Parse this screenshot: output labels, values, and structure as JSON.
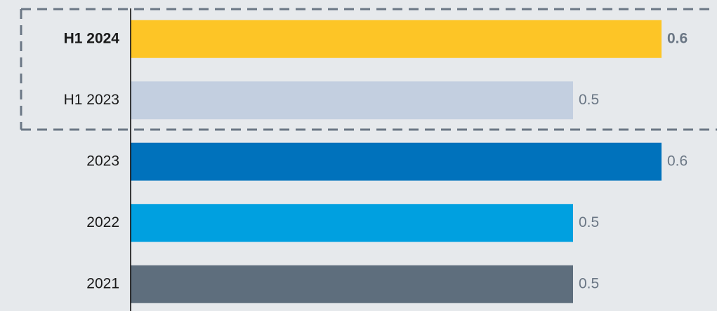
{
  "chart_data": {
    "type": "bar",
    "orientation": "horizontal",
    "categories": [
      "H1 2024",
      "H1 2023",
      "2023",
      "2022",
      "2021"
    ],
    "values": [
      0.6,
      0.5,
      0.6,
      0.5,
      0.5
    ],
    "colors": [
      "#fdc526",
      "#c3cfe0",
      "#0072bc",
      "#00a0e0",
      "#5e6e7d"
    ],
    "bold": [
      true,
      false,
      false,
      false,
      false
    ]
  }
}
